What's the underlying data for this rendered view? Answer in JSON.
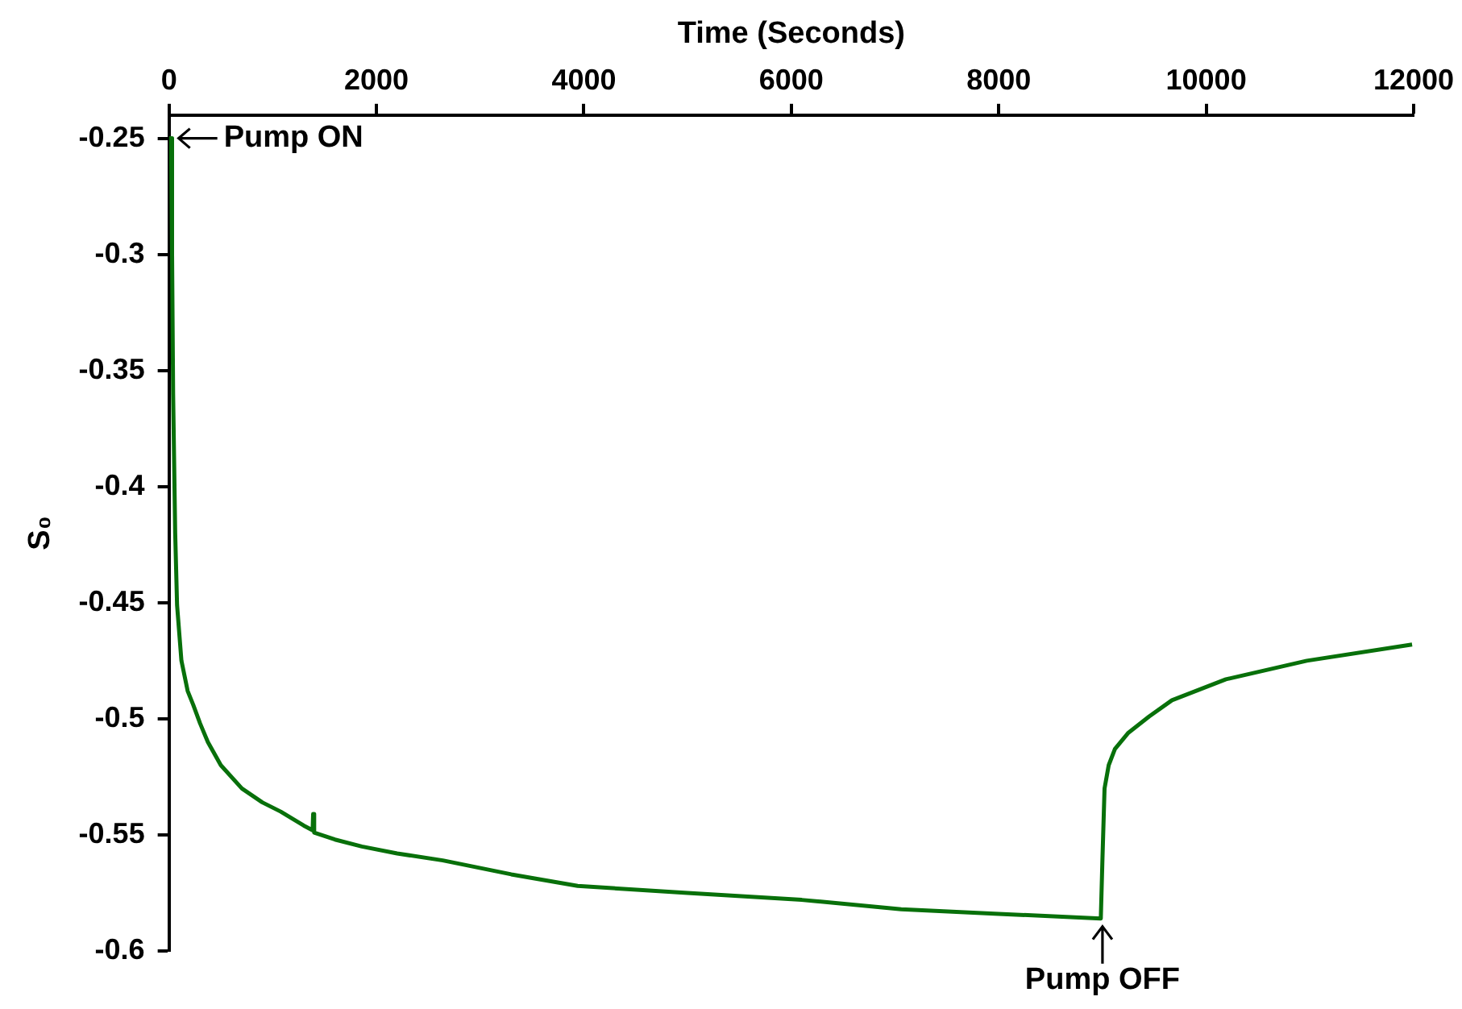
{
  "chart_data": {
    "type": "line",
    "xlabel": "Time (Seconds)",
    "ylabel": "S₀",
    "xlim": [
      0,
      12000
    ],
    "xticks": [
      0,
      2000,
      4000,
      6000,
      8000,
      10000,
      12000
    ],
    "ylim": [
      -0.6,
      -0.24
    ],
    "yticks": [
      -0.6,
      -0.55,
      -0.5,
      -0.45,
      -0.4,
      -0.35,
      -0.3,
      -0.25
    ],
    "grid": false,
    "legend": false,
    "marker": "none",
    "line_style": "solid",
    "series": [
      {
        "color": "#08700a",
        "x": [
          0,
          20,
          30,
          40,
          60,
          78,
          120,
          180,
          234,
          300,
          375,
          500,
          703,
          900,
          1078,
          1300,
          1385,
          1390,
          1400,
          1600,
          1860,
          2200,
          2640,
          3300,
          3940,
          5000,
          6100,
          7060,
          8000,
          8984,
          9000,
          9020,
          9060,
          9120,
          9250,
          9450,
          9670,
          10190,
          10970,
          11985
        ],
        "values": [
          -0.25,
          -0.25,
          -0.3,
          -0.36,
          -0.42,
          -0.451,
          -0.475,
          -0.488,
          -0.494,
          -0.502,
          -0.51,
          -0.52,
          -0.53,
          -0.536,
          -0.54,
          -0.546,
          -0.548,
          -0.541,
          -0.549,
          -0.552,
          -0.555,
          -0.558,
          -0.561,
          -0.567,
          -0.572,
          -0.575,
          -0.578,
          -0.582,
          -0.584,
          -0.586,
          -0.56,
          -0.53,
          -0.52,
          -0.513,
          -0.506,
          -0.499,
          -0.492,
          -0.483,
          -0.475,
          -0.468
        ]
      }
    ],
    "annotations": [
      {
        "text": "Pump ON",
        "x": 0,
        "y": -0.25
      },
      {
        "text": "Pump OFF",
        "x": 9000,
        "y": -0.586
      }
    ]
  }
}
